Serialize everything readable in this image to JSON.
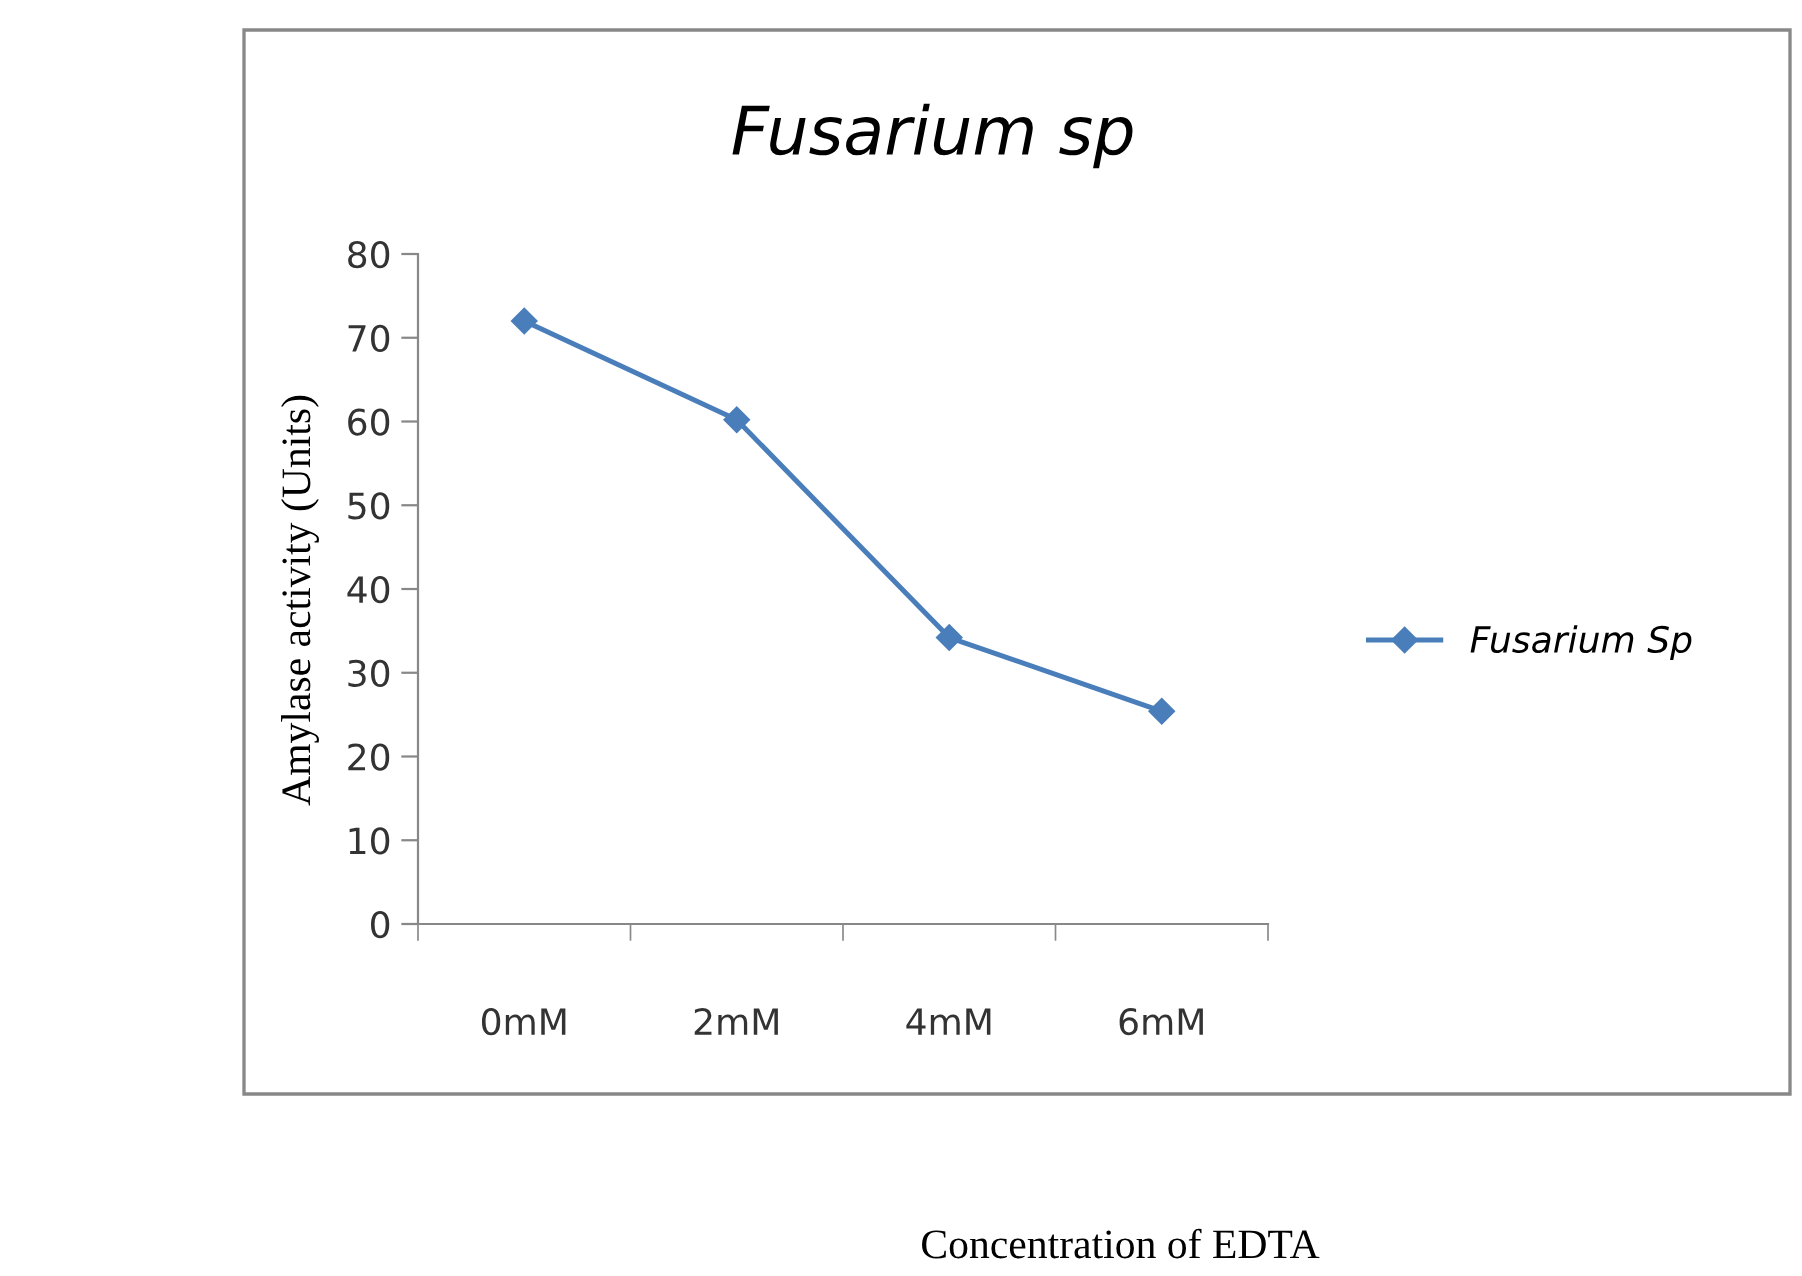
{
  "chart_data": {
    "type": "line",
    "title": "Fusarium sp",
    "xlabel": "Concentration of EDTA",
    "ylabel": "Amylase activity (Units)",
    "categories": [
      "0mM",
      "2mM",
      "4mM",
      "6mM"
    ],
    "series": [
      {
        "name": "Fusarium Sp",
        "color": "#4a7ebb",
        "values": [
          72,
          60.2,
          34.2,
          25.4
        ]
      }
    ],
    "ylim": [
      0,
      80
    ],
    "yticks": [
      0,
      10,
      20,
      30,
      40,
      50,
      60,
      70,
      80
    ],
    "grid": false,
    "legend": "right",
    "marker": "diamond",
    "line_style": "solid"
  }
}
